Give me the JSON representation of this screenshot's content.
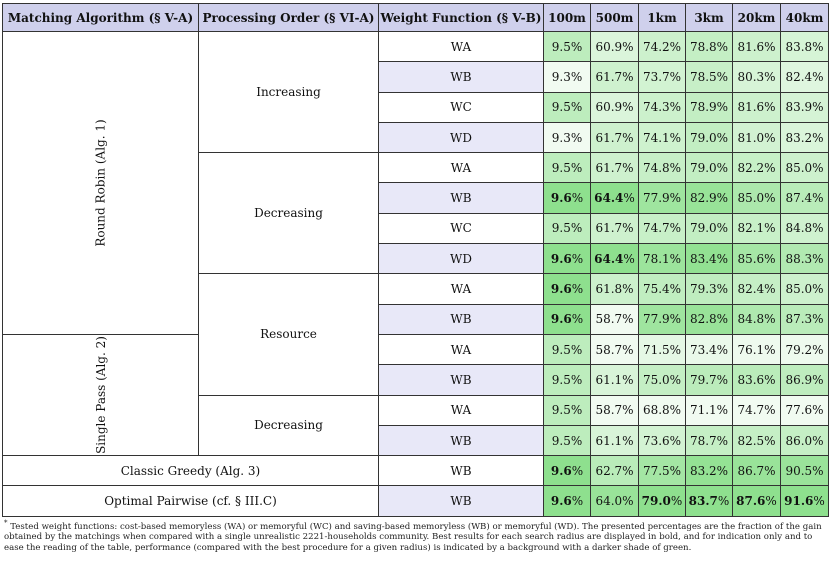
{
  "headers": [
    "Matching Algorithm (§ V-A)",
    "Processing Order (§ VI-A)",
    "Weight Function (§ V-B)",
    "100m",
    "500m",
    "1km",
    "3km",
    "20km",
    "40km"
  ],
  "algorithms": {
    "round_robin": "Round Robin (Alg. 1)",
    "single_pass": "Single Pass (Alg. 2)",
    "classic_greedy": "Classic Greedy (Alg. 3)",
    "optimal_pairwise": "Optimal Pairwise (cf. § III.C)"
  },
  "orders": {
    "increasing": "Increasing",
    "decreasing": "Decreasing",
    "resource": "Resource",
    "decreasing_sp": "Decreasing"
  },
  "rows": [
    {
      "wf": "WA",
      "values": [
        "9.5%",
        "60.9%",
        "74.2%",
        "78.8%",
        "81.6%",
        "83.8%"
      ],
      "bold": [
        false,
        false,
        false,
        false,
        false,
        false
      ]
    },
    {
      "wf": "WB",
      "values": [
        "9.3%",
        "61.7%",
        "73.7%",
        "78.5%",
        "80.3%",
        "82.4%"
      ],
      "bold": [
        false,
        false,
        false,
        false,
        false,
        false
      ]
    },
    {
      "wf": "WC",
      "values": [
        "9.5%",
        "60.9%",
        "74.3%",
        "78.9%",
        "81.6%",
        "83.9%"
      ],
      "bold": [
        false,
        false,
        false,
        false,
        false,
        false
      ]
    },
    {
      "wf": "WD",
      "values": [
        "9.3%",
        "61.7%",
        "74.1%",
        "79.0%",
        "81.0%",
        "83.2%"
      ],
      "bold": [
        false,
        false,
        false,
        false,
        false,
        false
      ]
    },
    {
      "wf": "WA",
      "values": [
        "9.5%",
        "61.7%",
        "74.8%",
        "79.0%",
        "82.2%",
        "85.0%"
      ],
      "bold": [
        false,
        false,
        false,
        false,
        false,
        false
      ]
    },
    {
      "wf": "WB",
      "values": [
        "9.6%",
        "64.4%",
        "77.9%",
        "82.9%",
        "85.0%",
        "87.4%"
      ],
      "bold": [
        true,
        true,
        false,
        false,
        false,
        false
      ]
    },
    {
      "wf": "WC",
      "values": [
        "9.5%",
        "61.7%",
        "74.7%",
        "79.0%",
        "82.1%",
        "84.8%"
      ],
      "bold": [
        false,
        false,
        false,
        false,
        false,
        false
      ]
    },
    {
      "wf": "WD",
      "values": [
        "9.6%",
        "64.4%",
        "78.1%",
        "83.4%",
        "85.6%",
        "88.3%"
      ],
      "bold": [
        true,
        true,
        false,
        false,
        false,
        false
      ]
    },
    {
      "wf": "WA",
      "values": [
        "9.6%",
        "61.8%",
        "75.4%",
        "79.3%",
        "82.4%",
        "85.0%"
      ],
      "bold": [
        true,
        false,
        false,
        false,
        false,
        false
      ]
    },
    {
      "wf": "WB",
      "values": [
        "9.6%",
        "58.7%",
        "77.9%",
        "82.8%",
        "84.8%",
        "87.3%"
      ],
      "bold": [
        true,
        false,
        false,
        false,
        false,
        false
      ]
    },
    {
      "wf": "WA",
      "values": [
        "9.5%",
        "58.7%",
        "71.5%",
        "73.4%",
        "76.1%",
        "79.2%"
      ],
      "bold": [
        false,
        false,
        false,
        false,
        false,
        false
      ]
    },
    {
      "wf": "WB",
      "values": [
        "9.5%",
        "61.1%",
        "75.0%",
        "79.7%",
        "83.6%",
        "86.9%"
      ],
      "bold": [
        false,
        false,
        false,
        false,
        false,
        false
      ]
    },
    {
      "wf": "WA",
      "values": [
        "9.5%",
        "58.7%",
        "68.8%",
        "71.1%",
        "74.7%",
        "77.6%"
      ],
      "bold": [
        false,
        false,
        false,
        false,
        false,
        false
      ]
    },
    {
      "wf": "WB",
      "values": [
        "9.5%",
        "61.1%",
        "73.6%",
        "78.7%",
        "82.5%",
        "86.0%"
      ],
      "bold": [
        false,
        false,
        false,
        false,
        false,
        false
      ]
    },
    {
      "wf": "WB",
      "values": [
        "9.6%",
        "62.7%",
        "77.5%",
        "83.2%",
        "86.7%",
        "90.5%"
      ],
      "bold": [
        true,
        false,
        false,
        false,
        false,
        false
      ]
    },
    {
      "wf": "WB",
      "values": [
        "9.6%",
        "64.0%",
        "79.0%",
        "83.7%",
        "87.6%",
        "91.6%"
      ],
      "bold": [
        true,
        false,
        true,
        true,
        true,
        true
      ]
    }
  ],
  "footnote": {
    "marker": "*",
    "text": "Tested weight functions: cost-based memoryless (WA) or memoryful (WC) and saving-based memoryless (WB) or memoryful (WD). The presented percentages are the fraction of the gain obtained by the matchings when compared with a single unrealistic 2221-households community. Best results for each search radius are displayed in bold, and for indication only and to ease the reading of the table, performance (compared with the best procedure for a given radius) is indicated by a background with a darker shade of green."
  },
  "colors": {
    "header_bg": "#cfd0ec",
    "alt_row_bg": "#e8e8f8",
    "best_green": "#8ee08e",
    "light_green": "#f1fbf1"
  }
}
